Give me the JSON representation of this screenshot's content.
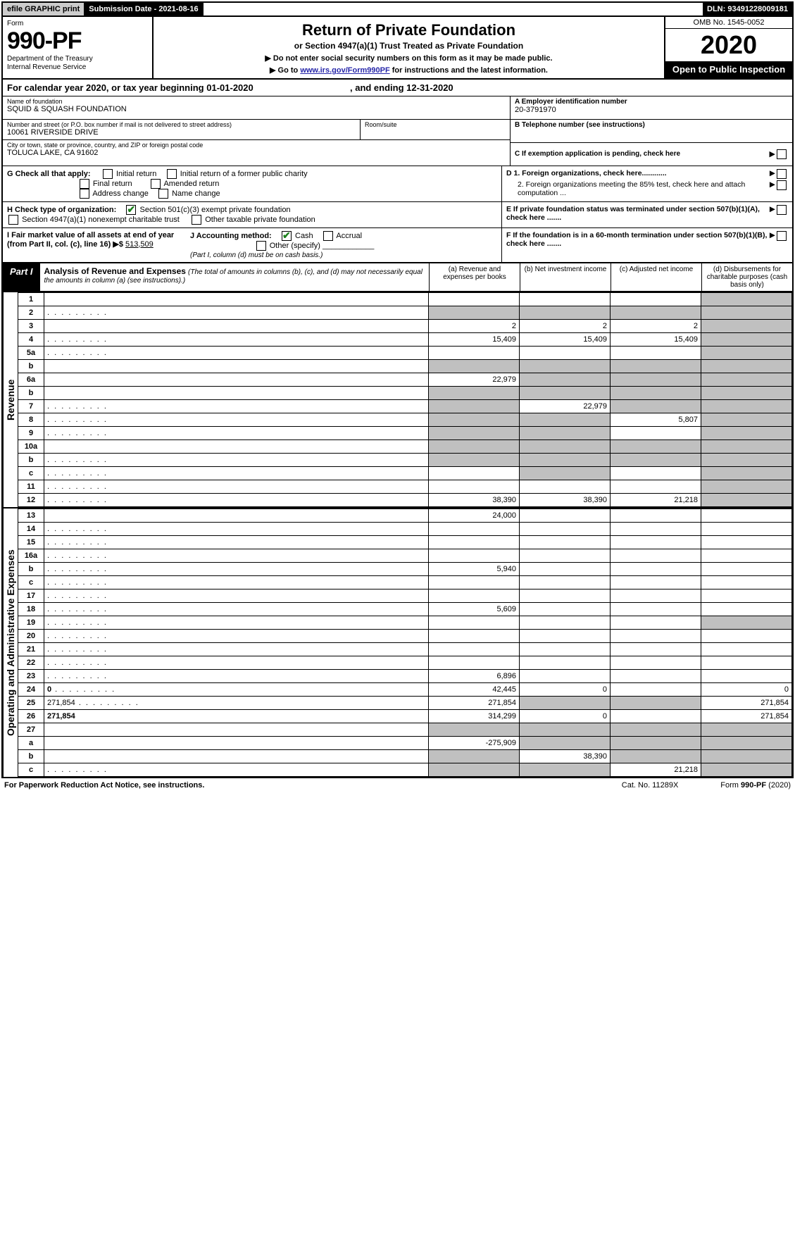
{
  "topbar": {
    "efile": "efile GRAPHIC print",
    "submission": "Submission Date - 2021-08-16",
    "dln": "DLN: 93491228009181"
  },
  "header": {
    "form_word": "Form",
    "form_no": "990-PF",
    "dept": "Department of the Treasury\nInternal Revenue Service",
    "title": "Return of Private Foundation",
    "subtitle": "or Section 4947(a)(1) Trust Treated as Private Foundation",
    "inst1": "▶ Do not enter social security numbers on this form as it may be made public.",
    "inst2_pre": "▶ Go to ",
    "inst2_link": "www.irs.gov/Form990PF",
    "inst2_post": " for instructions and the latest information.",
    "omb": "OMB No. 1545-0052",
    "year": "2020",
    "open": "Open to Public Inspection"
  },
  "calyear": {
    "text_pre": "For calendar year 2020, or tax year beginning ",
    "begin": "01-01-2020",
    "mid": ", and ending ",
    "end": "12-31-2020"
  },
  "name_block": {
    "name_label": "Name of foundation",
    "name": "SQUID & SQUASH FOUNDATION",
    "street_label": "Number and street (or P.O. box number if mail is not delivered to street address)",
    "room_label": "Room/suite",
    "street": "10061 RIVERSIDE DRIVE",
    "city_label": "City or town, state or province, country, and ZIP or foreign postal code",
    "city": "TOLUCA LAKE, CA  91602"
  },
  "right_block": {
    "a_label": "A Employer identification number",
    "a_val": "20-3791970",
    "b_label": "B Telephone number (see instructions)",
    "c_label": "C If exemption application is pending, check here",
    "d1": "D 1. Foreign organizations, check here............",
    "d2": "2. Foreign organizations meeting the 85% test, check here and attach computation ...",
    "e": "E  If private foundation status was terminated under section 507(b)(1)(A), check here .......",
    "f": "F  If the foundation is in a 60-month termination under section 507(b)(1)(B), check here .......",
    "arrow": "▶"
  },
  "g_block": {
    "label": "G Check all that apply:",
    "opts": [
      "Initial return",
      "Initial return of a former public charity",
      "Final return",
      "Amended return",
      "Address change",
      "Name change"
    ]
  },
  "h_block": {
    "label": "H Check type of organization:",
    "o1": "Section 501(c)(3) exempt private foundation",
    "o2": "Section 4947(a)(1) nonexempt charitable trust",
    "o3": "Other taxable private foundation"
  },
  "i_block": {
    "label": "I Fair market value of all assets at end of year (from Part II, col. (c), line 16) ▶$",
    "val": "513,509"
  },
  "j_block": {
    "label": "J Accounting method:",
    "cash": "Cash",
    "accrual": "Accrual",
    "other": "Other (specify)",
    "note": "(Part I, column (d) must be on cash basis.)"
  },
  "part1": {
    "label": "Part I",
    "title": "Analysis of Revenue and Expenses",
    "title_note": "(The total of amounts in columns (b), (c), and (d) may not necessarily equal the amounts in column (a) (see instructions).)",
    "col_a": "(a)   Revenue and expenses per books",
    "col_b": "(b)  Net investment income",
    "col_c": "(c)  Adjusted net income",
    "col_d": "(d)  Disbursements for charitable purposes (cash basis only)"
  },
  "vert": {
    "revenue": "Revenue",
    "expenses": "Operating and Administrative Expenses"
  },
  "lines": [
    {
      "n": "1",
      "d": "",
      "a": "",
      "b": "",
      "c": "",
      "grey_d": true
    },
    {
      "n": "2",
      "d": "",
      "dots": true,
      "a": "",
      "b": "",
      "c": "",
      "grey_all": true
    },
    {
      "n": "3",
      "d": "",
      "a": "2",
      "b": "2",
      "c": "2",
      "grey_d": true
    },
    {
      "n": "4",
      "d": "",
      "dots": true,
      "a": "15,409",
      "b": "15,409",
      "c": "15,409",
      "grey_d": true
    },
    {
      "n": "5a",
      "d": "",
      "dots": true,
      "a": "",
      "b": "",
      "c": "",
      "grey_d": true
    },
    {
      "n": "b",
      "d": "",
      "a": "",
      "b": "",
      "c": "",
      "grey_all": true
    },
    {
      "n": "6a",
      "d": "",
      "a": "22,979",
      "b": "",
      "c": "",
      "grey_bcd": true
    },
    {
      "n": "b",
      "d": "",
      "a": "",
      "b": "",
      "c": "",
      "grey_all": true
    },
    {
      "n": "7",
      "d": "",
      "dots": true,
      "a": "",
      "b": "22,979",
      "c": "",
      "grey_a": true,
      "grey_cd": true
    },
    {
      "n": "8",
      "d": "",
      "dots": true,
      "a": "",
      "b": "",
      "c": "5,807",
      "grey_ab": true,
      "grey_d": true
    },
    {
      "n": "9",
      "d": "",
      "dots": true,
      "a": "",
      "b": "",
      "c": "",
      "grey_ab": true,
      "grey_d": true
    },
    {
      "n": "10a",
      "d": "",
      "a": "",
      "b": "",
      "c": "",
      "grey_all": true
    },
    {
      "n": "b",
      "d": "",
      "dots": true,
      "a": "",
      "b": "",
      "c": "",
      "grey_all": true
    },
    {
      "n": "c",
      "d": "",
      "dots": true,
      "a": "",
      "b": "",
      "c": "",
      "grey_b": true,
      "grey_d": true
    },
    {
      "n": "11",
      "d": "",
      "dots": true,
      "a": "",
      "b": "",
      "c": "",
      "grey_d": true
    },
    {
      "n": "12",
      "d": "",
      "bold": true,
      "dots": true,
      "a": "38,390",
      "b": "38,390",
      "c": "21,218",
      "grey_d": true
    }
  ],
  "exp_lines": [
    {
      "n": "13",
      "d": "",
      "a": "24,000",
      "b": "",
      "c": ""
    },
    {
      "n": "14",
      "d": "",
      "dots": true,
      "a": "",
      "b": "",
      "c": ""
    },
    {
      "n": "15",
      "d": "",
      "dots": true,
      "a": "",
      "b": "",
      "c": ""
    },
    {
      "n": "16a",
      "d": "",
      "dots": true,
      "a": "",
      "b": "",
      "c": ""
    },
    {
      "n": "b",
      "d": "",
      "dots": true,
      "a": "5,940",
      "b": "",
      "c": ""
    },
    {
      "n": "c",
      "d": "",
      "dots": true,
      "a": "",
      "b": "",
      "c": ""
    },
    {
      "n": "17",
      "d": "",
      "dots": true,
      "a": "",
      "b": "",
      "c": ""
    },
    {
      "n": "18",
      "d": "",
      "dots": true,
      "a": "5,609",
      "b": "",
      "c": ""
    },
    {
      "n": "19",
      "d": "",
      "dots": true,
      "a": "",
      "b": "",
      "c": "",
      "grey_d": true
    },
    {
      "n": "20",
      "d": "",
      "dots": true,
      "a": "",
      "b": "",
      "c": ""
    },
    {
      "n": "21",
      "d": "",
      "dots": true,
      "a": "",
      "b": "",
      "c": ""
    },
    {
      "n": "22",
      "d": "",
      "dots": true,
      "a": "",
      "b": "",
      "c": ""
    },
    {
      "n": "23",
      "d": "",
      "dots": true,
      "a": "6,896",
      "b": "",
      "c": ""
    },
    {
      "n": "24",
      "d": "0",
      "bold": true,
      "dots": true,
      "a": "42,445",
      "b": "0",
      "c": ""
    },
    {
      "n": "25",
      "d": "271,854",
      "dots": true,
      "a": "271,854",
      "b": "",
      "c": "",
      "grey_bc": true
    },
    {
      "n": "26",
      "d": "271,854",
      "bold": true,
      "a": "314,299",
      "b": "0",
      "c": ""
    },
    {
      "n": "27",
      "d": "",
      "a": "",
      "b": "",
      "c": "",
      "grey_all": true
    },
    {
      "n": "a",
      "d": "",
      "bold": true,
      "a": "-275,909",
      "b": "",
      "c": "",
      "grey_bcd": true
    },
    {
      "n": "b",
      "d": "",
      "bold": true,
      "a": "",
      "b": "38,390",
      "c": "",
      "grey_a": true,
      "grey_cd": true
    },
    {
      "n": "c",
      "d": "",
      "bold": true,
      "dots": true,
      "a": "",
      "b": "",
      "c": "21,218",
      "grey_ab": true,
      "grey_d": true
    }
  ],
  "footer": {
    "left": "For Paperwork Reduction Act Notice, see instructions.",
    "mid": "Cat. No. 11289X",
    "right": "Form 990-PF (2020)"
  },
  "colors": {
    "link": "#2727aa",
    "check": "#1a7f1a",
    "grey": "#c0c0c0",
    "topgrey": "#cccccc"
  }
}
